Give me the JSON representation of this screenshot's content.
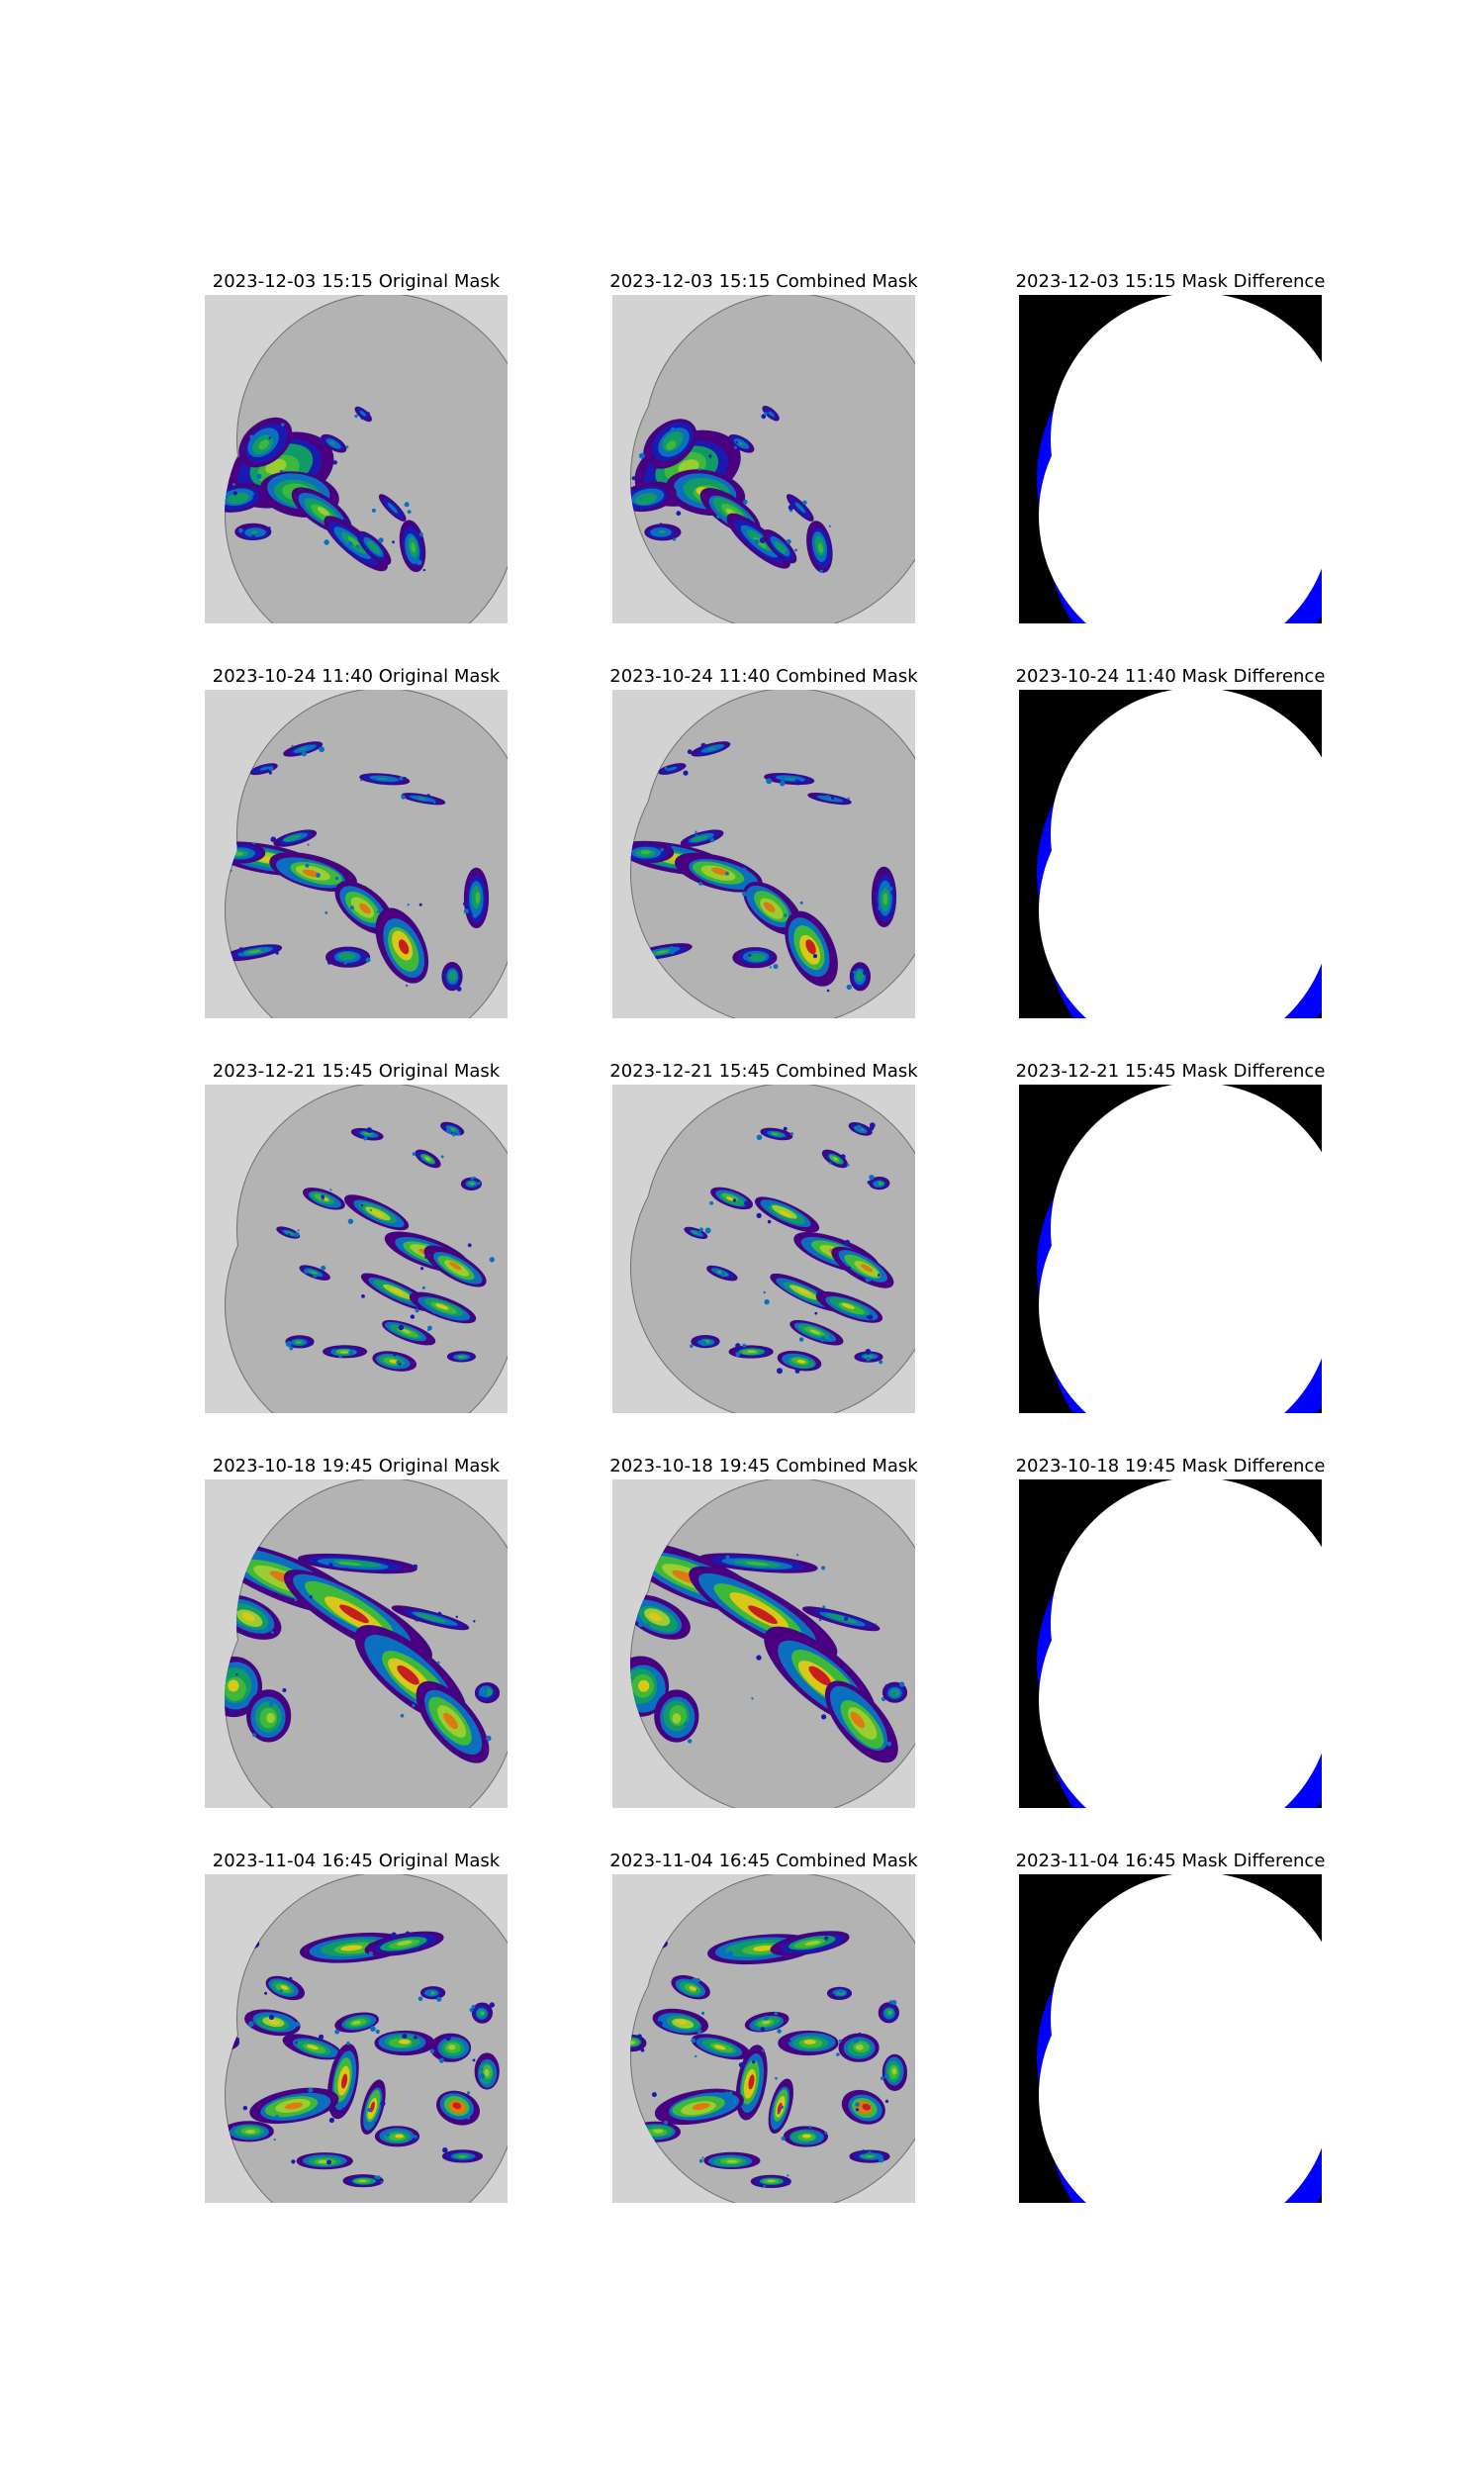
{
  "colors": {
    "frame_bg": "#d3d3d3",
    "domain_fill": "#b3b3b3",
    "domain_edge": "#6f6f6f",
    "diff_bg": "#000000",
    "diff_covered": "#ffffff",
    "diff_missing": "#0000ff",
    "precip_scale": [
      "#4b0082",
      "#1a1ab3",
      "#0b6fc0",
      "#0f9a66",
      "#3db83a",
      "#9acd32",
      "#d8c818",
      "#e07a10",
      "#c81e1e"
    ]
  },
  "columns": [
    "Original Mask",
    "Combined Mask",
    "Mask Difference"
  ],
  "rows": [
    {
      "timestamp": "2023-12-03 15:15",
      "titles": [
        "2023-12-03 15:15 Original Mask",
        "2023-12-03 15:15 Combined Mask",
        "2023-12-03 15:15 Mask Difference"
      ],
      "echo_pattern": "cluster-west"
    },
    {
      "timestamp": "2023-10-24 11:40",
      "titles": [
        "2023-10-24 11:40 Original Mask",
        "2023-10-24 11:40 Combined Mask",
        "2023-10-24 11:40 Mask Difference"
      ],
      "echo_pattern": "band-west-southeast"
    },
    {
      "timestamp": "2023-12-21 15:45",
      "titles": [
        "2023-12-21 15:45 Original Mask",
        "2023-12-21 15:45 Combined Mask",
        "2023-12-21 15:45 Mask Difference"
      ],
      "echo_pattern": "scattered-cells"
    },
    {
      "timestamp": "2023-10-18 19:45",
      "titles": [
        "2023-10-18 19:45 Original Mask",
        "2023-10-18 19:45 Combined Mask",
        "2023-10-18 19:45 Mask Difference"
      ],
      "echo_pattern": "broad-band"
    },
    {
      "timestamp": "2023-11-04 16:45",
      "titles": [
        "2023-11-04 16:45 Original Mask",
        "2023-11-04 16:45 Combined Mask",
        "2023-11-04 16:45 Mask Difference"
      ],
      "echo_pattern": "multicell"
    }
  ]
}
